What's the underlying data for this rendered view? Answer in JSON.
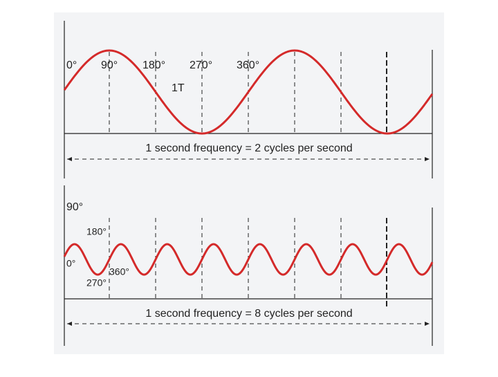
{
  "top": {
    "angle_labels": [
      "0°",
      "90°",
      "180°",
      "270°",
      "360°"
    ],
    "period_label": "1T",
    "caption": "1 second frequency = 2 cycles per second"
  },
  "bottom": {
    "angle_labels": [
      "90°",
      "180°",
      "0°",
      "360°",
      "270°"
    ],
    "caption": "1 second frequency = 8 cycles per second"
  }
}
